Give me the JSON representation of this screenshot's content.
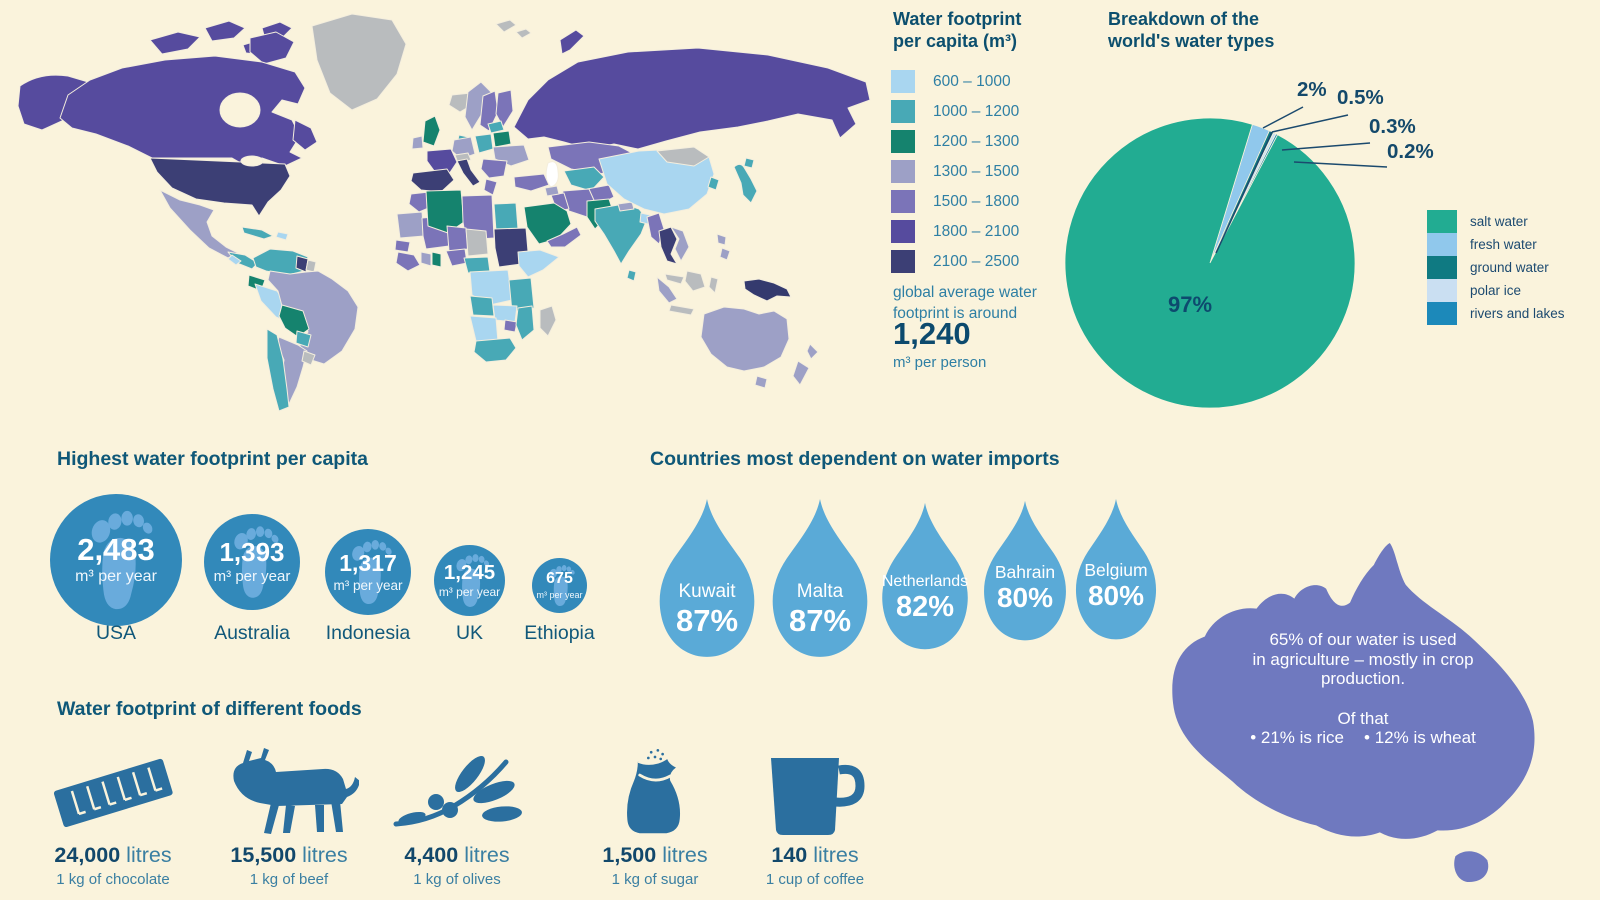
{
  "page": {
    "background": "#faf3dc"
  },
  "map_section": {
    "title_line1": "Water footprint",
    "title_line2": "per capita (m³)",
    "note": "global average water footprint is around",
    "average_value": "1,240",
    "average_unit": "m³ per person"
  },
  "pie_section": {
    "title_line1": "Breakdown of the",
    "title_line2": "world's water types"
  },
  "footprints": {
    "heading": "Highest water footprint per capita",
    "unit": "m³ per year",
    "items": [
      {
        "country": "USA",
        "value": "2,483"
      },
      {
        "country": "Australia",
        "value": "1,393"
      },
      {
        "country": "Indonesia",
        "value": "1,317"
      },
      {
        "country": "UK",
        "value": "1,245"
      },
      {
        "country": "Ethiopia",
        "value": "675"
      }
    ]
  },
  "imports": {
    "heading": "Countries most dependent on water imports",
    "items": [
      {
        "country": "Kuwait",
        "pct": "87%"
      },
      {
        "country": "Malta",
        "pct": "87%"
      },
      {
        "country": "Netherlands",
        "pct": "82%"
      },
      {
        "country": "Bahrain",
        "pct": "80%"
      },
      {
        "country": "Belgium",
        "pct": "80%"
      }
    ]
  },
  "australia_callout": {
    "line1": "65% of our water is used",
    "line2": "in agriculture – mostly in crop",
    "line3": "production.",
    "line4": "Of that",
    "bullet1": "• 21% is rice",
    "bullet2": "• 12% is wheat"
  },
  "foods": {
    "heading": "Water footprint of different foods",
    "unit": "litres",
    "items": [
      {
        "value": "24,000",
        "unit": "litres",
        "caption": "1 kg of chocolate",
        "icon": "chocolate-bar-icon"
      },
      {
        "value": "15,500",
        "unit": "litres",
        "caption": "1 kg of beef",
        "icon": "cow-icon"
      },
      {
        "value": "4,400",
        "unit": "litres",
        "caption": "1 kg of olives",
        "icon": "olive-branch-icon"
      },
      {
        "value": "1,500",
        "unit": "litres",
        "caption": "1 kg of sugar",
        "icon": "sugar-sack-icon"
      },
      {
        "value": "140",
        "unit": "litres",
        "caption": "1 cup of coffee",
        "icon": "coffee-mug-icon"
      }
    ]
  },
  "chart_data": [
    {
      "type": "pie",
      "title": "Breakdown of the world's water types",
      "legend_position": "right",
      "slices": [
        {
          "label": "salt water",
          "value": 97,
          "display": "97%",
          "color": "#22ac92"
        },
        {
          "label": "fresh water",
          "value": 2,
          "display": "2%",
          "color": "#90c8ec"
        },
        {
          "label": "ground water",
          "value": 0.5,
          "display": "0.5%",
          "color": "#0f7a82"
        },
        {
          "label": "polar ice",
          "value": 0.3,
          "display": "0.3%",
          "color": "#cadff2"
        },
        {
          "label": "rivers and lakes",
          "value": 0.2,
          "display": "0.2%",
          "color": "#1c89ba"
        }
      ],
      "start_angle_deg": 73,
      "direction": "clockwise",
      "small_slice_order": [
        1,
        2,
        3,
        4,
        0
      ]
    },
    {
      "type": "choropleth",
      "title": "Water footprint per capita (m³)",
      "bins": [
        {
          "label": "600 – 1000",
          "color": "#a9d6f0"
        },
        {
          "label": "1000 – 1200",
          "color": "#48a9b6"
        },
        {
          "label": "1200 – 1300",
          "color": "#15836e"
        },
        {
          "label": "1300 – 1500",
          "color": "#9da0c6"
        },
        {
          "label": "1500 – 1800",
          "color": "#7b74b8"
        },
        {
          "label": "1800 – 2100",
          "color": "#564b9e"
        },
        {
          "label": "2100 – 2500",
          "color": "#3c3f75"
        }
      ],
      "no_data_color": "#b9bcbe",
      "note": "global average water footprint is around 1,240 m³ per person"
    },
    {
      "type": "proportional-circles",
      "title": "Highest water footprint per capita",
      "categories": [
        "USA",
        "Australia",
        "Indonesia",
        "UK",
        "Ethiopia"
      ],
      "values": [
        2483,
        1393,
        1317,
        1245,
        675
      ],
      "unit": "m³ per year"
    },
    {
      "type": "pictogram-drops",
      "title": "Countries most dependent on water imports",
      "categories": [
        "Kuwait",
        "Malta",
        "Netherlands",
        "Bahrain",
        "Belgium"
      ],
      "values": [
        87,
        87,
        82,
        80,
        80
      ],
      "unit": "%"
    },
    {
      "type": "pictogram-foods",
      "title": "Water footprint of different foods",
      "categories": [
        "1 kg of chocolate",
        "1 kg of beef",
        "1 kg of olives",
        "1 kg of sugar",
        "1 cup of coffee"
      ],
      "values": [
        24000,
        15500,
        4400,
        1500,
        140
      ],
      "unit": "litres"
    },
    {
      "type": "callout",
      "title": "Australia water use",
      "text": "65% of our water is used in agriculture – mostly in crop production. Of that • 21% is rice • 12% is wheat"
    }
  ]
}
